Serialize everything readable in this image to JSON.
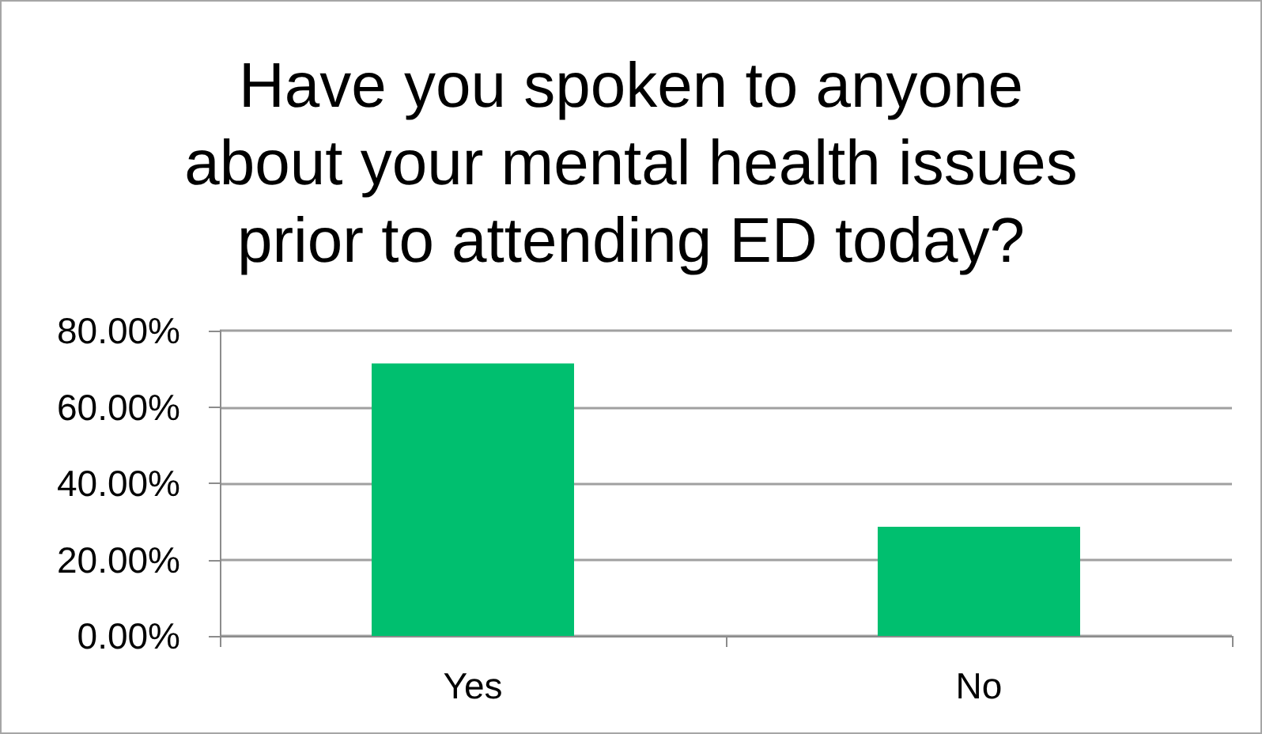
{
  "chart_data": {
    "type": "bar",
    "title": "Have you spoken to anyone\nabout your mental health issues\nprior to attending ED today?",
    "categories": [
      "Yes",
      "No"
    ],
    "values": [
      71.4,
      28.6
    ],
    "color": "#00bf6f",
    "ylim": [
      0,
      80
    ],
    "yticks": [
      {
        "value": 0,
        "label": "0.00%"
      },
      {
        "value": 20,
        "label": "20.00%"
      },
      {
        "value": 40,
        "label": "40.00%"
      },
      {
        "value": 60,
        "label": "60.00%"
      },
      {
        "value": 80,
        "label": "80.00%"
      }
    ],
    "grid": "y"
  }
}
